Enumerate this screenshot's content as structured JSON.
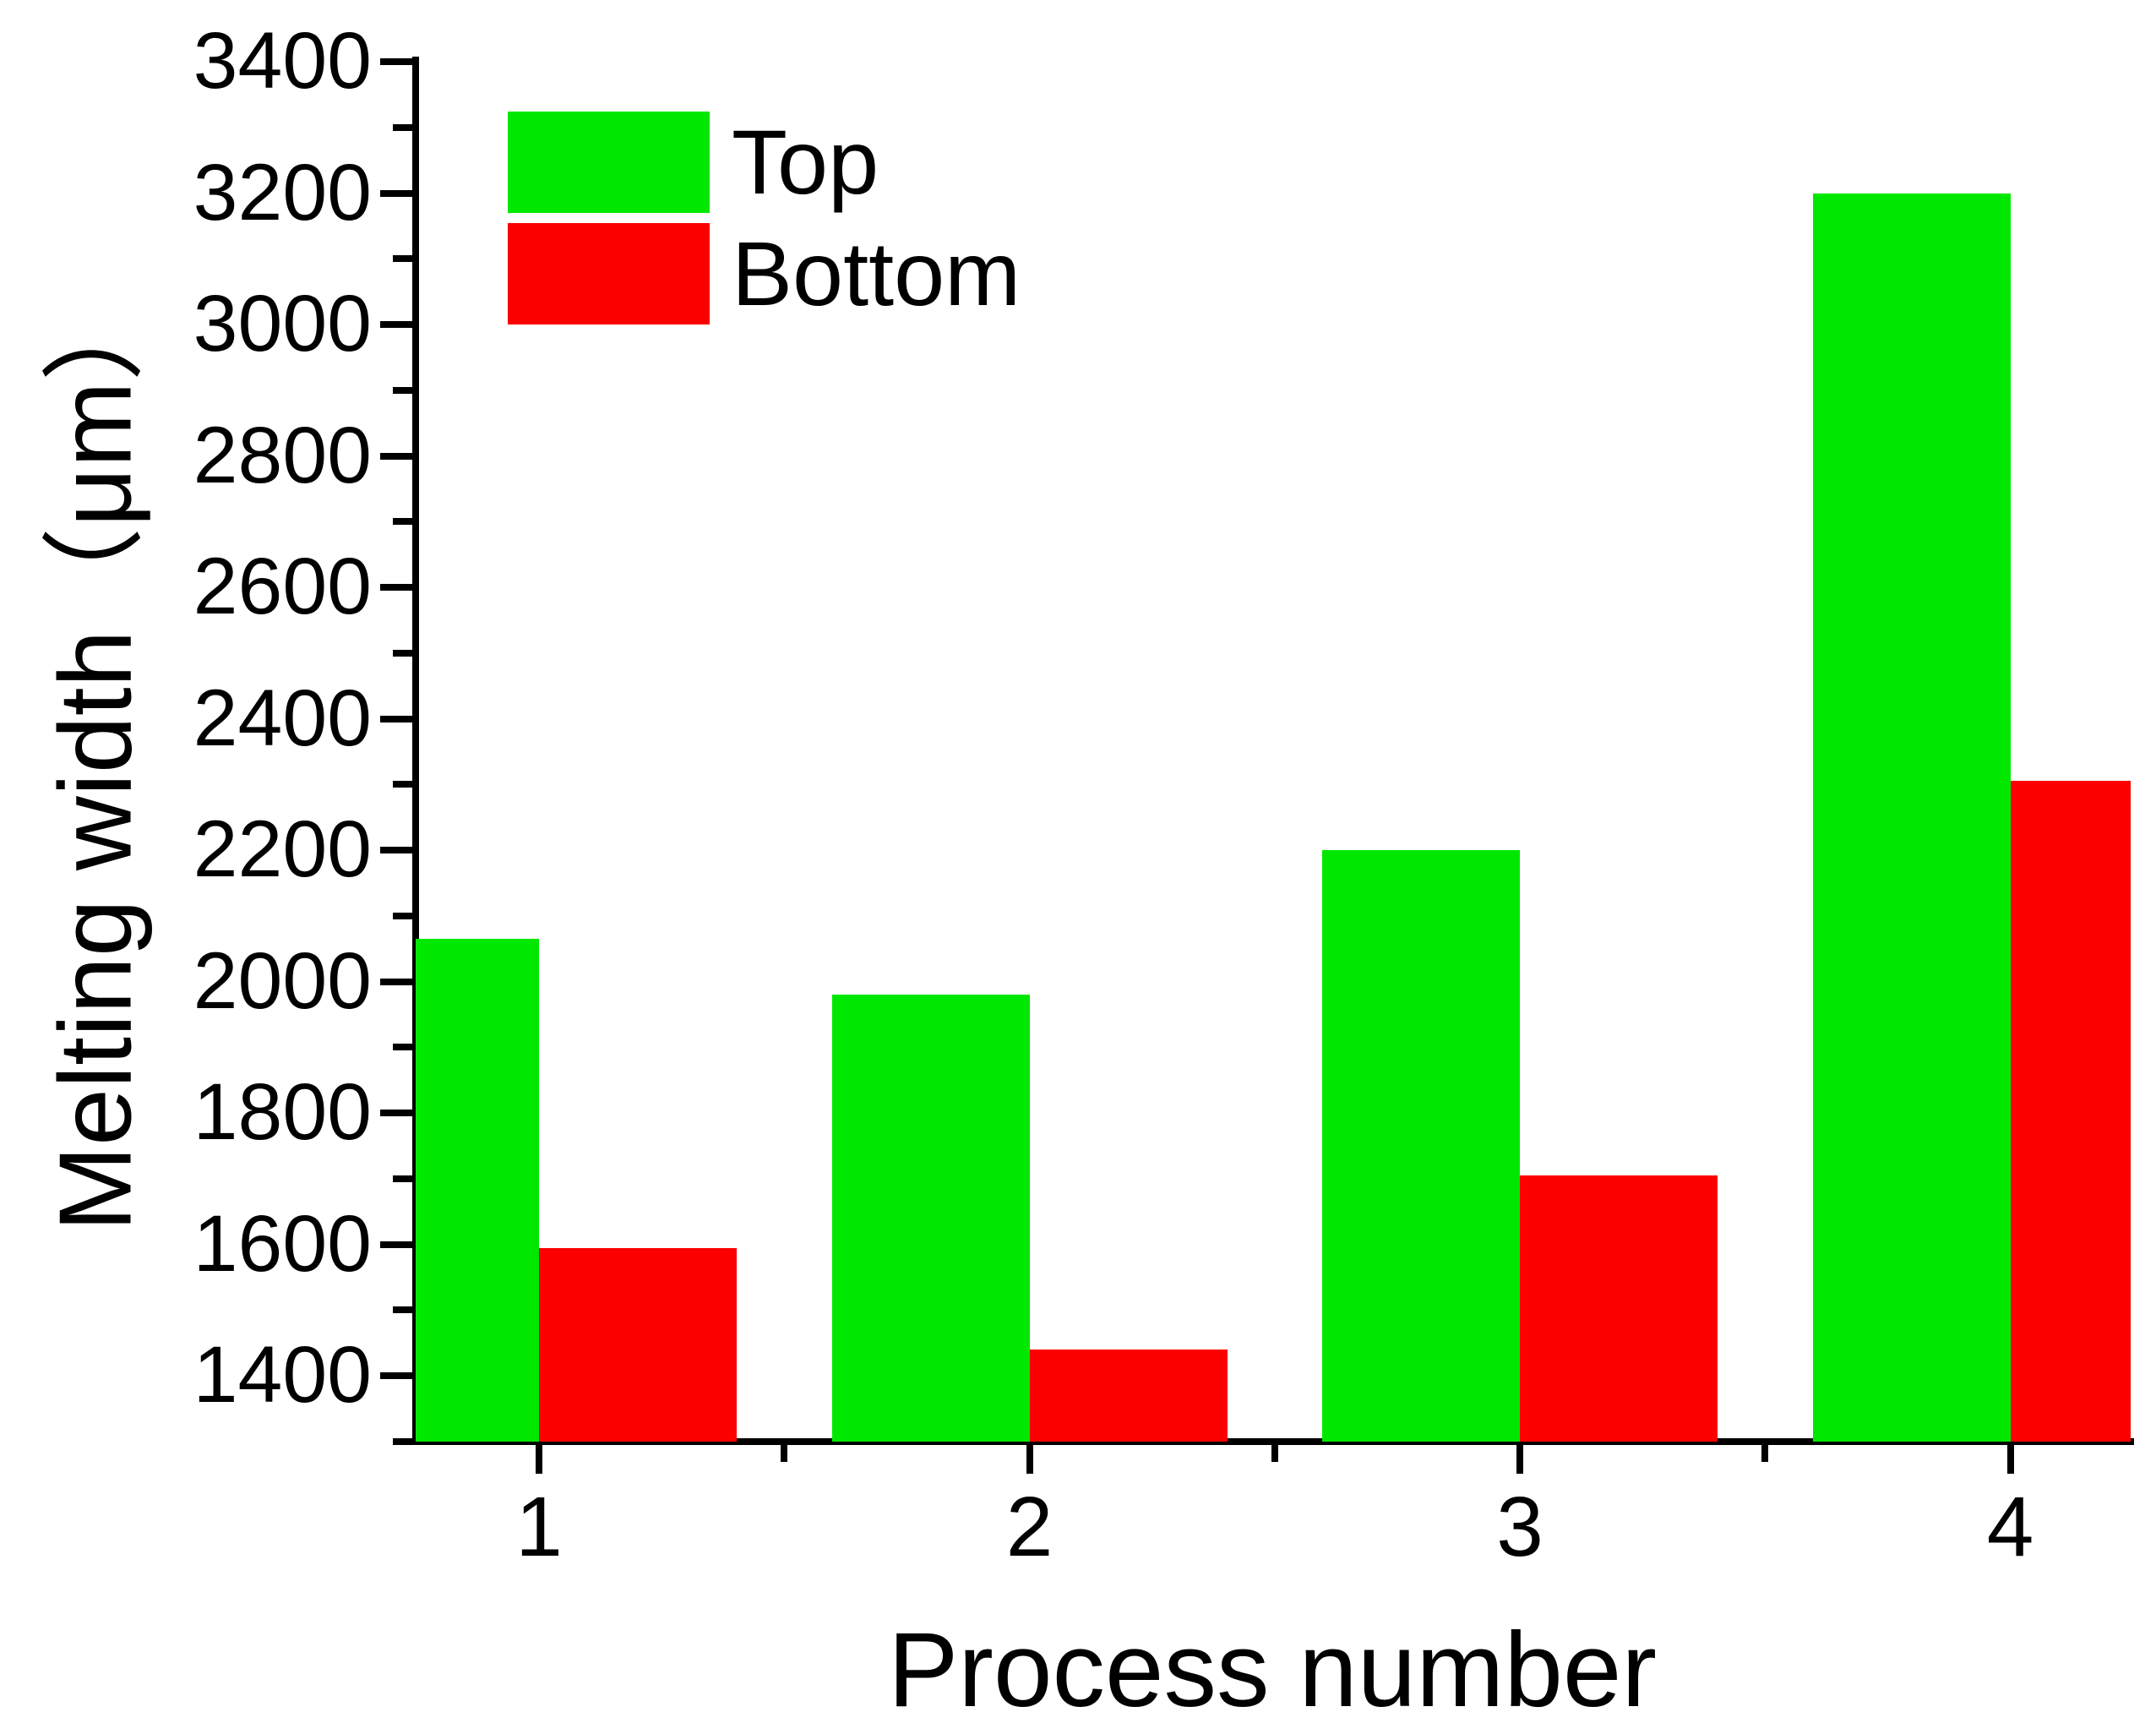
{
  "chart_data": {
    "type": "bar",
    "title": "",
    "xlabel": "Process number",
    "ylabel": "Melting width（μm）",
    "categories": [
      "1",
      "2",
      "3",
      "4"
    ],
    "series": [
      {
        "name": "Top",
        "color": "#00e800",
        "values": [
          2065,
          1980,
          2200,
          3200
        ]
      },
      {
        "name": "Bottom",
        "color": "#fc0000",
        "values": [
          1595,
          1440,
          1705,
          2305
        ]
      }
    ],
    "ylim": [
      1300,
      3400
    ],
    "y_major_ticks": [
      "3400",
      "3200",
      "3000",
      "2800",
      "2600",
      "2400",
      "2200",
      "2000",
      "1800",
      "1600",
      "1400"
    ],
    "y_minor_step": 100,
    "x_minor_ticks_between_categories": true,
    "grid": false,
    "legend_position": "top-left-inside",
    "axis_color": "#000000",
    "background_color": "#ffffff"
  },
  "legend": {
    "items": [
      {
        "label": "Top",
        "color": "#00e800"
      },
      {
        "label": "Bottom",
        "color": "#fc0000"
      }
    ]
  }
}
